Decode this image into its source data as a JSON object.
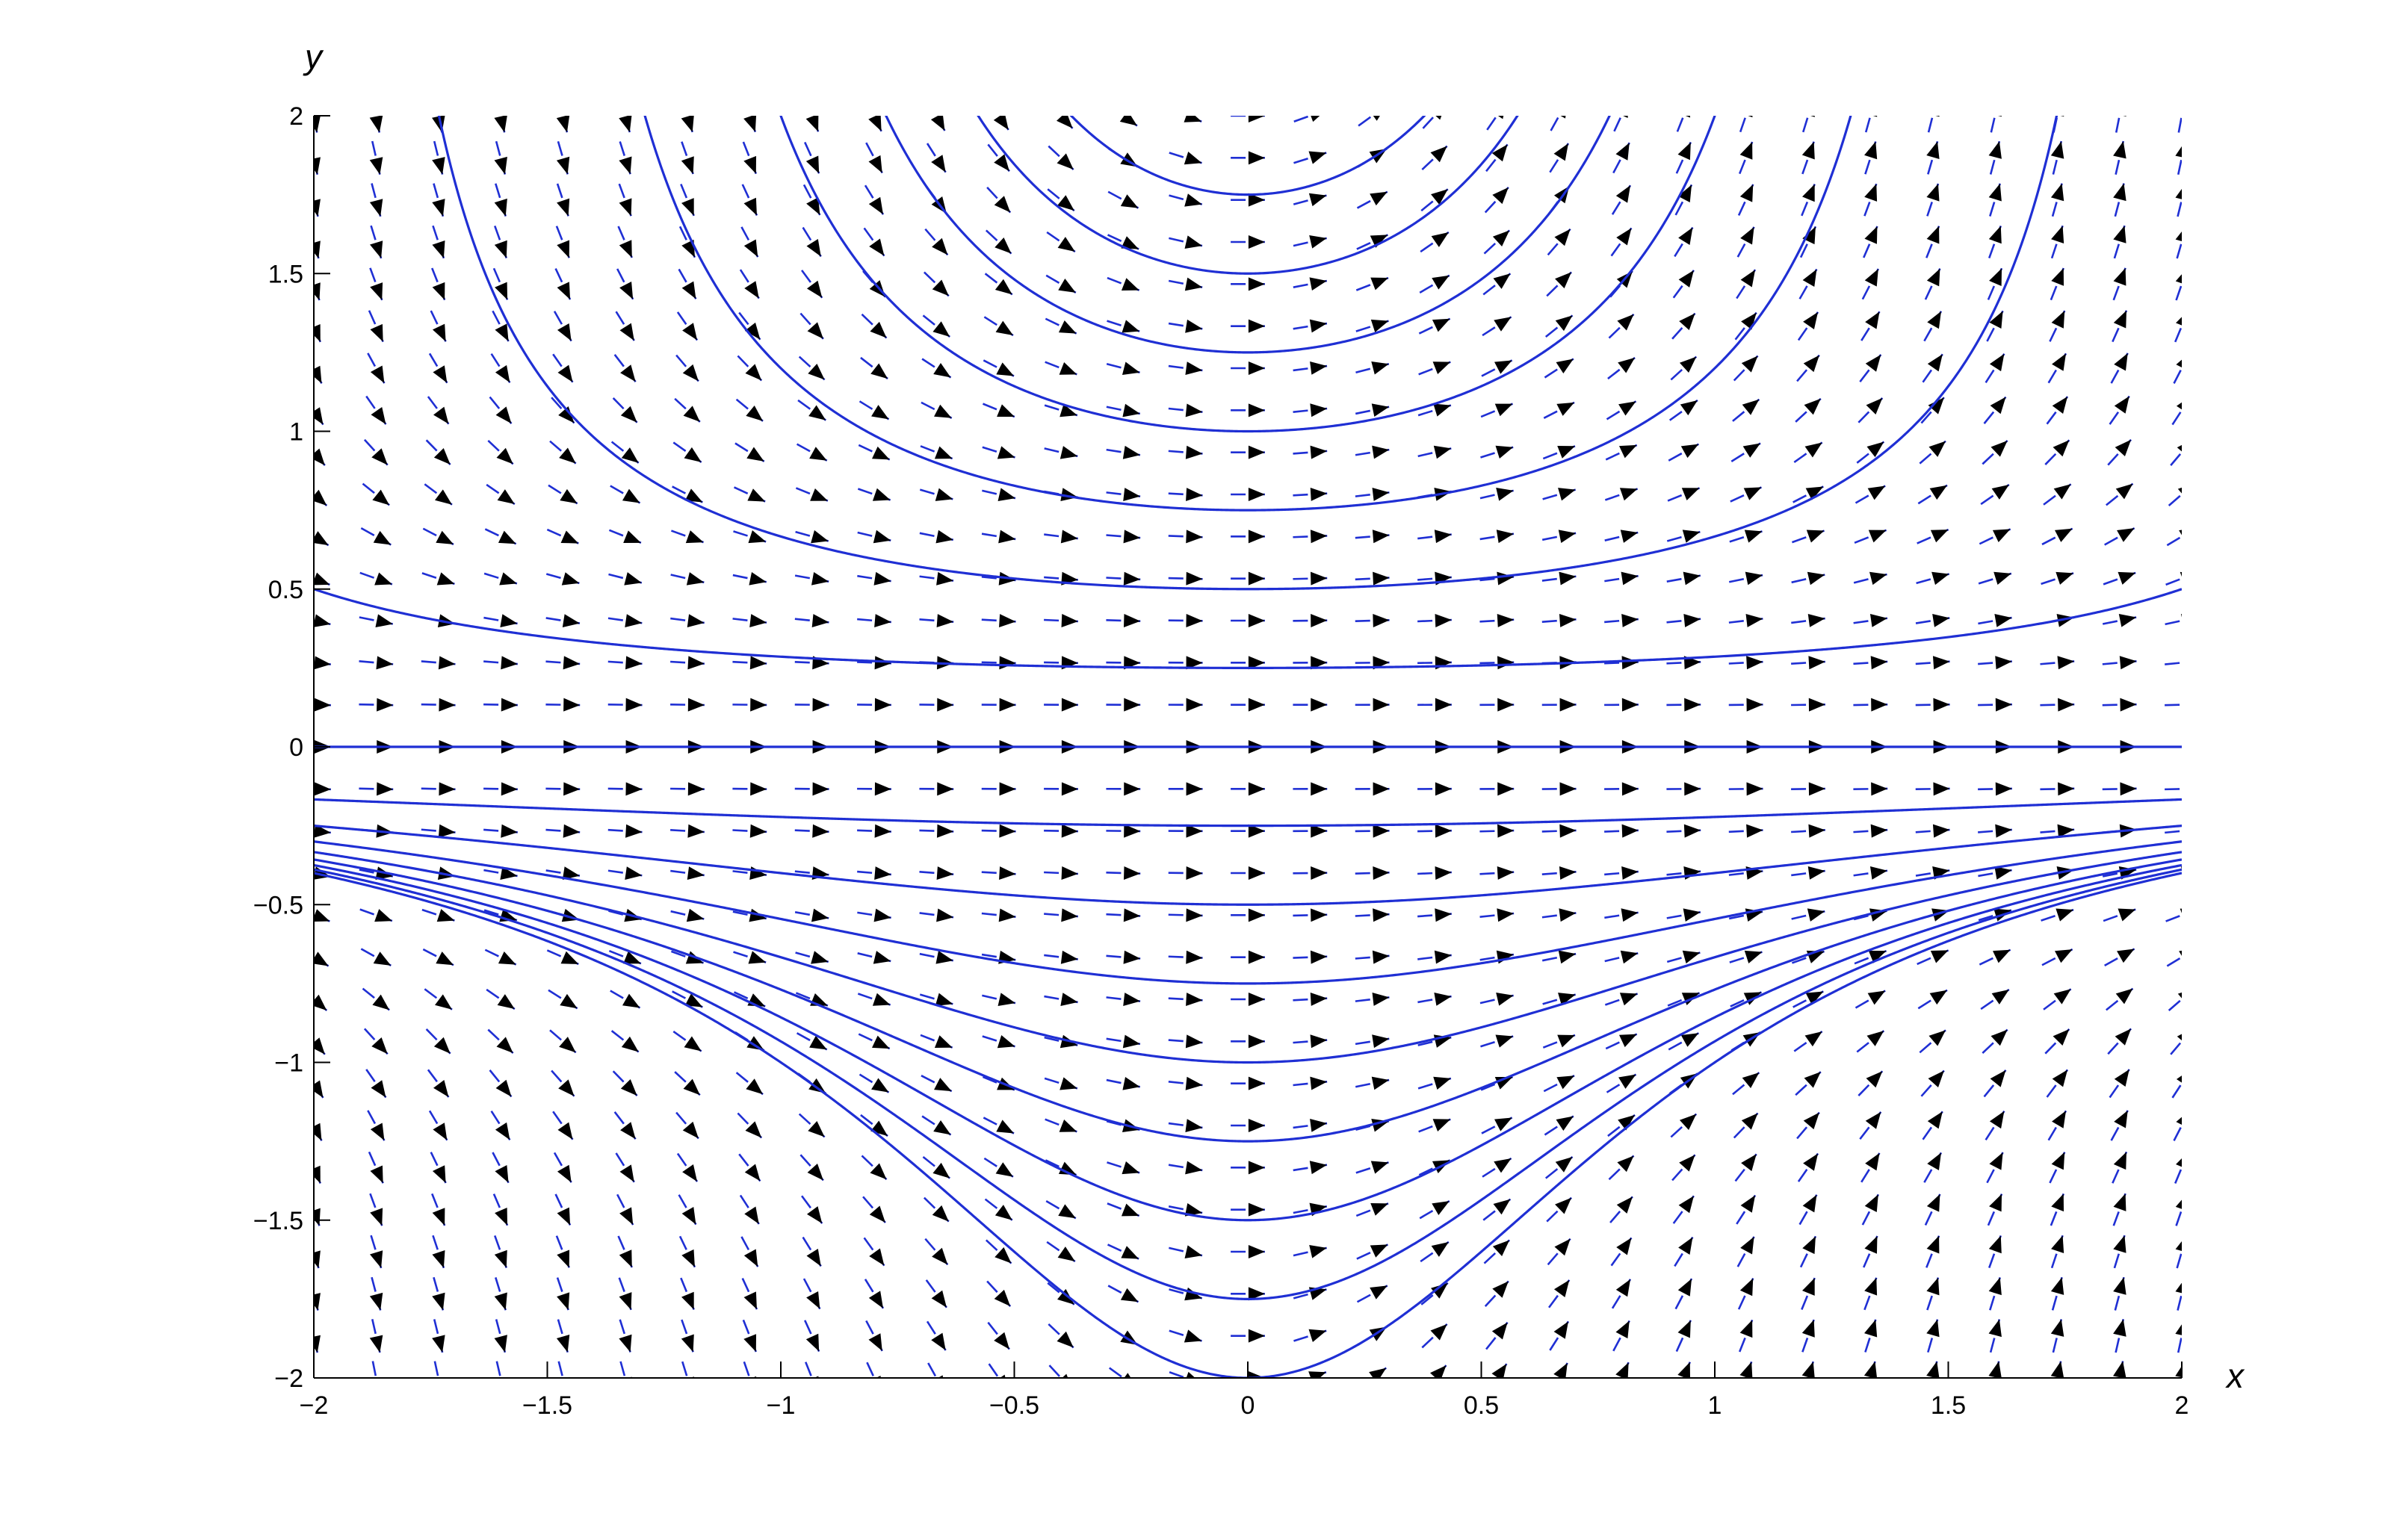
{
  "chart_data": {
    "type": "quiver+streamlines",
    "title": "",
    "xlabel": "x",
    "ylabel": "y",
    "xlim": [
      -2,
      2
    ],
    "ylim": [
      -2,
      2
    ],
    "grid": false,
    "xticks": [
      -2,
      -1.5,
      -1,
      -0.5,
      0,
      0.5,
      1,
      1.5,
      2
    ],
    "yticks": [
      -2,
      -1.5,
      -1,
      -0.5,
      0,
      0.5,
      1,
      1.5,
      2
    ],
    "xtick_labels": [
      "−2",
      "−1.5",
      "−1",
      "−0.5",
      "0",
      "0.5",
      "1",
      "1.5",
      "2"
    ],
    "ytick_labels": [
      "−2",
      "−1.5",
      "−1",
      "−0.5",
      "0",
      "0.5",
      "1",
      "1.5",
      "2"
    ],
    "vector_field": {
      "dx": "1",
      "dy": "x*y^2",
      "x_points": 31,
      "y_points": 31
    },
    "streamline_y0_at_x0": [
      0.25,
      0.5,
      0.75,
      1.0,
      1.25,
      1.5,
      1.75,
      0,
      -0.25,
      -0.5,
      -0.75,
      -1.0,
      -1.25,
      -1.5,
      -1.75,
      -2.0
    ],
    "colors": {
      "curves": "#1f2fd4",
      "arrows": "#000000",
      "vectors": "#1f2fd4",
      "axes": "#000000"
    }
  }
}
